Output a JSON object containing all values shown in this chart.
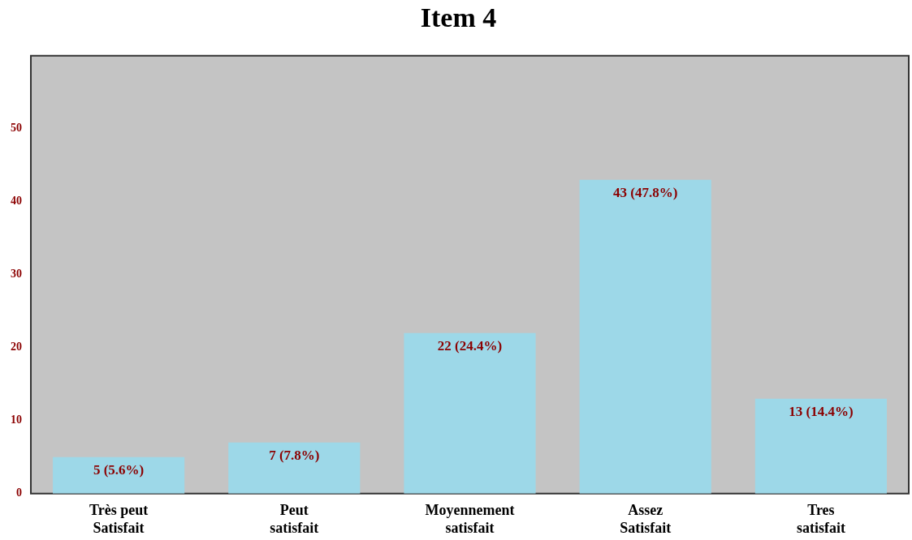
{
  "chart_data": {
    "type": "bar",
    "title": "Item 4",
    "categories": [
      "Très peut Satisfait",
      "Peut satisfait",
      "Moyennement satisfait",
      "Assez Satisfait",
      "Tres satisfait"
    ],
    "values": [
      5,
      7,
      22,
      43,
      13
    ],
    "value_labels": [
      "5 (5.6%)",
      "7 (7.8%)",
      "22 (24.4%)",
      "43 (47.8%)",
      "13 (14.4%)"
    ],
    "color": "#9dd8e8",
    "ylim": [
      0,
      60
    ],
    "yticks": [
      0,
      10,
      20,
      30,
      40,
      50
    ],
    "grid": false,
    "legend": false
  }
}
